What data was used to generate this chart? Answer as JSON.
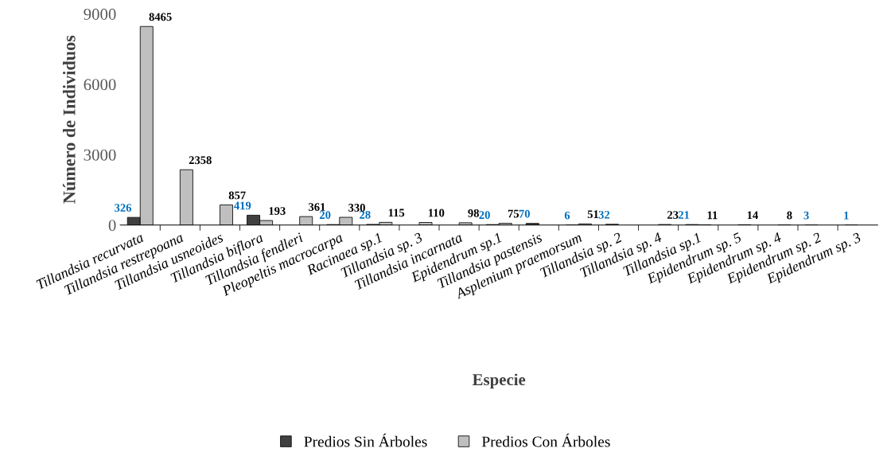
{
  "chart_data": {
    "type": "bar",
    "xlabel": "Especie",
    "ylabel": "Número de Individuos",
    "categories": [
      "Tillandsia recurvata",
      "Tillandsia restrepoana",
      "Tillandsia usneoides",
      "Tillandsia biflora",
      "Tillandsia fendleri",
      "Pleopeltis macrocarpa",
      "Racinaea sp.1",
      "Tillandsia sp. 3",
      "Tillandsia incarnata",
      "Epidendrum sp.1",
      "Tillandsia pastensis",
      "Asplenium praemorsum",
      "Tillandsia sp. 2",
      "Tillandsia sp. 4",
      "Tillandsia sp.1",
      "Epidendrum sp. 5",
      "Epidendrum sp. 4",
      "Epidendrum sp. 2",
      "Epidendrum sp. 3"
    ],
    "series": [
      {
        "name": "Predios Sin Árboles",
        "color": "#404040",
        "values": [
          326,
          null,
          null,
          419,
          null,
          20,
          28,
          null,
          null,
          20,
          70,
          6,
          32,
          null,
          21,
          null,
          null,
          3,
          1
        ]
      },
      {
        "name": "Predios Con Árboles",
        "color": "#bfbfbf",
        "values": [
          8465,
          2358,
          857,
          193,
          361,
          330,
          115,
          110,
          98,
          75,
          null,
          51,
          null,
          23,
          11,
          14,
          8,
          null,
          null
        ]
      }
    ],
    "ylim": [
      0,
      9000
    ],
    "yticks": [
      0,
      3000,
      6000,
      9000
    ],
    "data_labels": true,
    "grid": false,
    "legend": "bottom"
  }
}
